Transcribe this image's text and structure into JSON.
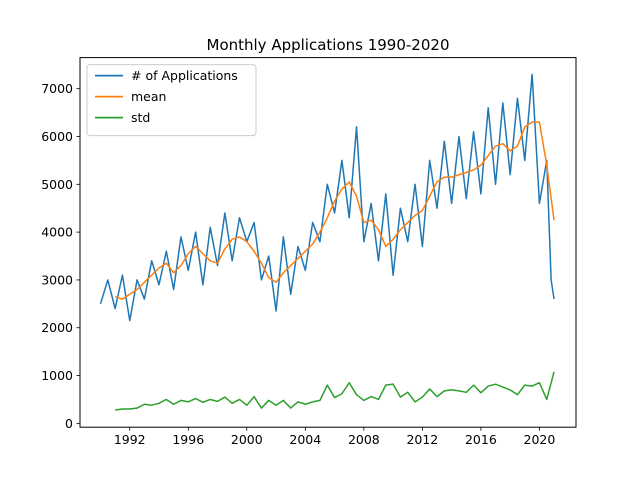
{
  "chart_data": {
    "type": "line",
    "title": "Monthly Applications 1990-2020",
    "xlabel": "",
    "ylabel": "",
    "xlim": [
      1988.6,
      2022.5
    ],
    "ylim": [
      -80,
      7650
    ],
    "x_ticks": [
      1992,
      1996,
      2000,
      2004,
      2008,
      2012,
      2016,
      2020
    ],
    "y_ticks": [
      0,
      1000,
      2000,
      3000,
      4000,
      5000,
      6000,
      7000
    ],
    "grid": false,
    "legend_position": "upper-left",
    "series": [
      {
        "name": "# of Applications",
        "color": "#1f77b4",
        "x": [
          1990.0,
          1990.5,
          1991.0,
          1991.5,
          1992.0,
          1992.5,
          1993.0,
          1993.5,
          1994.0,
          1994.5,
          1995.0,
          1995.5,
          1996.0,
          1996.5,
          1997.0,
          1997.5,
          1998.0,
          1998.5,
          1999.0,
          1999.5,
          2000.0,
          2000.5,
          2001.0,
          2001.5,
          2002.0,
          2002.5,
          2003.0,
          2003.5,
          2004.0,
          2004.5,
          2005.0,
          2005.5,
          2006.0,
          2006.5,
          2007.0,
          2007.5,
          2008.0,
          2008.5,
          2009.0,
          2009.5,
          2010.0,
          2010.5,
          2011.0,
          2011.5,
          2012.0,
          2012.5,
          2013.0,
          2013.5,
          2014.0,
          2014.5,
          2015.0,
          2015.5,
          2016.0,
          2016.5,
          2017.0,
          2017.5,
          2018.0,
          2018.5,
          2019.0,
          2019.5,
          2020.0,
          2020.5,
          2020.8,
          2021.0
        ],
        "y": [
          2500,
          3000,
          2400,
          3100,
          2150,
          3000,
          2600,
          3400,
          2900,
          3600,
          2800,
          3900,
          3200,
          4000,
          2900,
          4100,
          3300,
          4400,
          3400,
          4300,
          3800,
          4200,
          3000,
          3500,
          2350,
          3900,
          2700,
          3700,
          3200,
          4200,
          3800,
          5000,
          4400,
          5500,
          4300,
          6200,
          3800,
          4600,
          3400,
          4800,
          3100,
          4500,
          3800,
          5000,
          3700,
          5500,
          4500,
          5900,
          4600,
          6000,
          4700,
          6100,
          4800,
          6600,
          5000,
          6700,
          5200,
          6800,
          5500,
          7300,
          4600,
          5500,
          3000,
          2600
        ]
      },
      {
        "name": "mean",
        "color": "#ff7f0e",
        "x": [
          1991.0,
          1991.5,
          1992.0,
          1992.5,
          1993.0,
          1993.5,
          1994.0,
          1994.5,
          1995.0,
          1995.5,
          1996.0,
          1996.5,
          1997.0,
          1997.5,
          1998.0,
          1998.5,
          1999.0,
          1999.5,
          2000.0,
          2000.5,
          2001.0,
          2001.5,
          2002.0,
          2002.5,
          2003.0,
          2003.5,
          2004.0,
          2004.5,
          2005.0,
          2005.5,
          2006.0,
          2006.5,
          2007.0,
          2007.5,
          2008.0,
          2008.5,
          2009.0,
          2009.5,
          2010.0,
          2010.5,
          2011.0,
          2011.5,
          2012.0,
          2012.5,
          2013.0,
          2013.5,
          2014.0,
          2014.5,
          2015.0,
          2015.5,
          2016.0,
          2016.5,
          2017.0,
          2017.5,
          2018.0,
          2018.5,
          2019.0,
          2019.5,
          2020.0,
          2020.5,
          2021.0
        ],
        "y": [
          2650,
          2600,
          2700,
          2800,
          2950,
          3100,
          3250,
          3350,
          3150,
          3300,
          3550,
          3700,
          3550,
          3400,
          3350,
          3650,
          3850,
          3900,
          3800,
          3600,
          3350,
          3050,
          2950,
          3150,
          3300,
          3450,
          3600,
          3750,
          4000,
          4300,
          4650,
          4900,
          5050,
          4750,
          4200,
          4250,
          4050,
          3700,
          3850,
          4050,
          4200,
          4350,
          4450,
          4750,
          5050,
          5150,
          5150,
          5200,
          5250,
          5300,
          5400,
          5600,
          5800,
          5850,
          5700,
          5800,
          6200,
          6300,
          6300,
          5400,
          4250
        ]
      },
      {
        "name": "std",
        "color": "#2ca02c",
        "x": [
          1991.0,
          1991.5,
          1992.0,
          1992.5,
          1993.0,
          1993.5,
          1994.0,
          1994.5,
          1995.0,
          1995.5,
          1996.0,
          1996.5,
          1997.0,
          1997.5,
          1998.0,
          1998.5,
          1999.0,
          1999.5,
          2000.0,
          2000.5,
          2001.0,
          2001.5,
          2002.0,
          2002.5,
          2003.0,
          2003.5,
          2004.0,
          2004.5,
          2005.0,
          2005.5,
          2006.0,
          2006.5,
          2007.0,
          2007.5,
          2008.0,
          2008.5,
          2009.0,
          2009.5,
          2010.0,
          2010.5,
          2011.0,
          2011.5,
          2012.0,
          2012.5,
          2013.0,
          2013.5,
          2014.0,
          2014.5,
          2015.0,
          2015.5,
          2016.0,
          2016.5,
          2017.0,
          2017.5,
          2018.0,
          2018.5,
          2019.0,
          2019.5,
          2020.0,
          2020.5,
          2021.0
        ],
        "y": [
          280,
          300,
          300,
          320,
          400,
          380,
          420,
          500,
          400,
          480,
          450,
          520,
          440,
          500,
          460,
          550,
          420,
          500,
          380,
          560,
          320,
          480,
          380,
          480,
          320,
          450,
          400,
          450,
          480,
          800,
          540,
          620,
          850,
          600,
          480,
          560,
          500,
          800,
          820,
          550,
          650,
          450,
          550,
          720,
          560,
          680,
          700,
          680,
          650,
          800,
          640,
          780,
          820,
          760,
          700,
          600,
          800,
          780,
          850,
          500,
          1080
        ]
      }
    ]
  }
}
